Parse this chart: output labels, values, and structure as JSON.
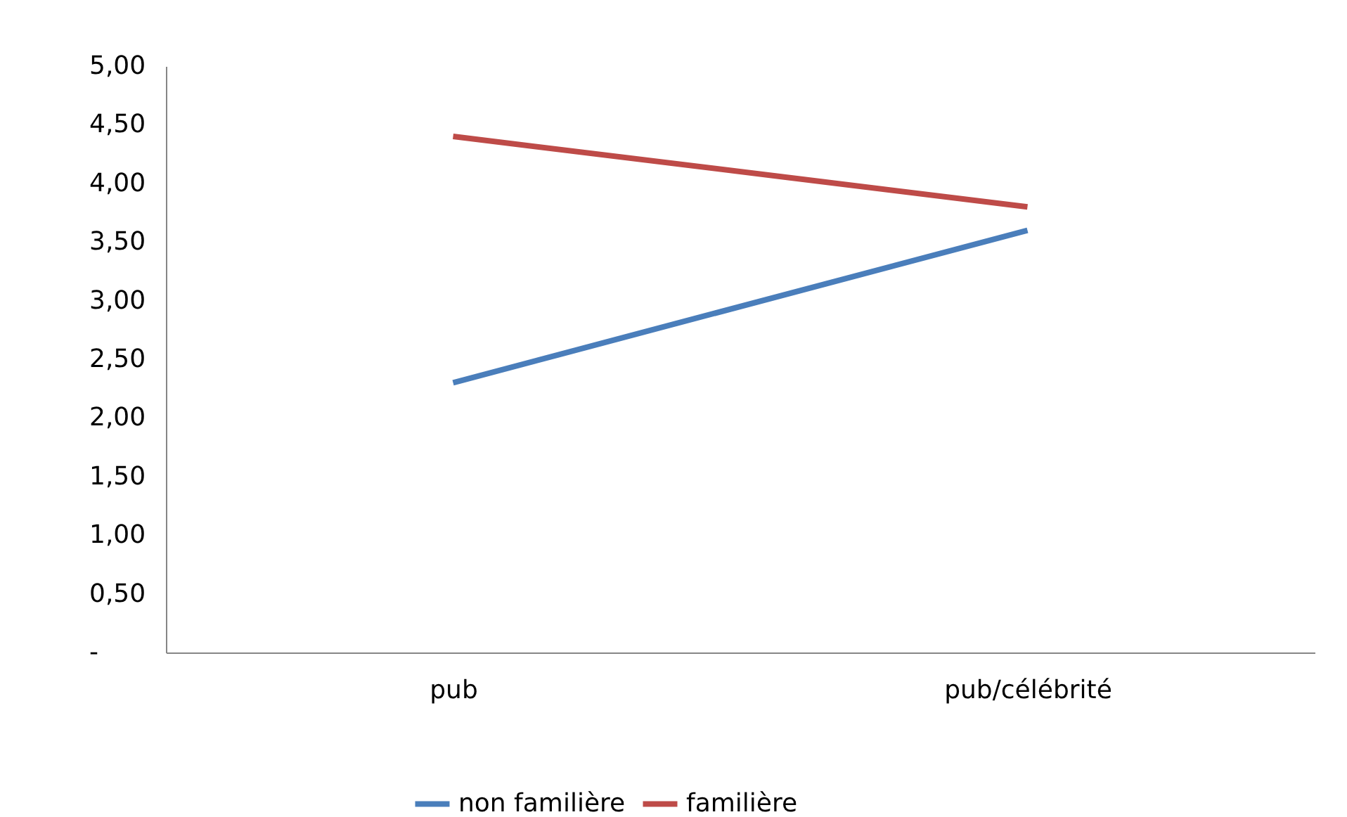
{
  "chart_data": {
    "type": "line",
    "categories": [
      "pub",
      "pub/célébrité"
    ],
    "series": [
      {
        "name": "non familière",
        "color": "#4a7ebb",
        "values": [
          2.3,
          3.6
        ]
      },
      {
        "name": "familière",
        "color": "#be4b48",
        "values": [
          4.4,
          3.8
        ]
      }
    ],
    "ylim": [
      0,
      5
    ],
    "yticks": [
      {
        "value": 0,
        "label": "-"
      },
      {
        "value": 0.5,
        "label": "0,50"
      },
      {
        "value": 1,
        "label": "1,00"
      },
      {
        "value": 1.5,
        "label": "1,50"
      },
      {
        "value": 2,
        "label": "2,00"
      },
      {
        "value": 2.5,
        "label": "2,50"
      },
      {
        "value": 3,
        "label": "3,00"
      },
      {
        "value": 3.5,
        "label": "3,50"
      },
      {
        "value": 4,
        "label": "4,00"
      },
      {
        "value": 4.5,
        "label": "4,50"
      },
      {
        "value": 5,
        "label": "5,00"
      }
    ],
    "grid": false,
    "legend": "bottom",
    "marker": "none",
    "line_style": "solid"
  }
}
